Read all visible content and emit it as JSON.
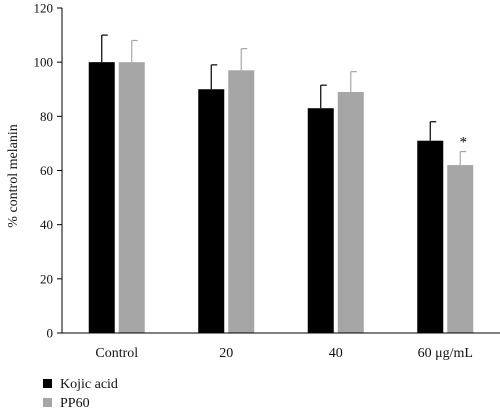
{
  "chart_data": {
    "type": "bar",
    "title": "",
    "xlabel": "",
    "ylabel": "% control melanin",
    "ylim": [
      0,
      120
    ],
    "yticks": [
      0,
      20,
      40,
      60,
      80,
      100,
      120
    ],
    "categories": [
      "Control",
      "20",
      "40",
      "60 μg/mL"
    ],
    "series": [
      {
        "name": "Kojic acid",
        "color": "#000000",
        "values": [
          100,
          90,
          83,
          71
        ],
        "errors": [
          10,
          9,
          8.5,
          7
        ]
      },
      {
        "name": "PP60",
        "color": "#a6a6a6",
        "values": [
          100,
          97,
          89,
          62
        ],
        "errors": [
          8,
          8,
          7.5,
          5
        ]
      }
    ],
    "annotations": [
      {
        "category_index": 3,
        "series_index": 1,
        "text": "*"
      }
    ],
    "legend_position": "bottom-left",
    "grid": false
  }
}
